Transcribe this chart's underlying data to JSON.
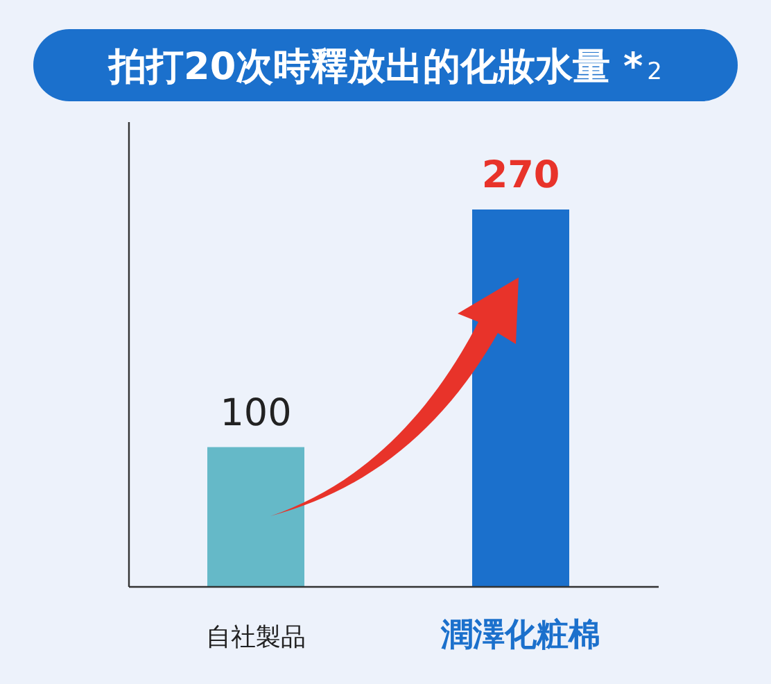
{
  "chart_data": {
    "type": "bar",
    "title": "拍打20次時釋放出的化妝水量 *$_{2}$",
    "categories": [
      "自社製品",
      "潤澤化粧棉"
    ],
    "values": [
      100,
      270
    ],
    "colors": [
      "#65b9c8",
      "#1b70cc"
    ],
    "data_labels": true
  }
}
